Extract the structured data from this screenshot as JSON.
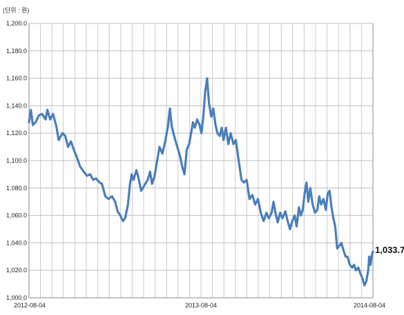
{
  "chart_data": {
    "type": "line",
    "unit_label": "(단위 : 원)",
    "ylim": [
      1000,
      1200
    ],
    "y_ticks": [
      "1,200.0",
      "1,180.0",
      "1,160.0",
      "1,140.0",
      "1,120.0",
      "1,100.0",
      "1,080.0",
      "1,060.0",
      "1,040.0",
      "1,020.0",
      "1,000.0"
    ],
    "x_ticks": [
      "2012-08-04",
      "2013-08-04",
      "2014-08-04"
    ],
    "x_range": [
      "2012-08-04",
      "2014-08-04"
    ],
    "grid": true,
    "colors": {
      "series": "#4a7ebb"
    },
    "end_label": "1,033.7",
    "series": [
      {
        "values": [
          [
            "2012-08-04",
            1128
          ],
          [
            "2012-08-08",
            1137
          ],
          [
            "2012-08-12",
            1126
          ],
          [
            "2012-08-18",
            1128
          ],
          [
            "2012-08-25",
            1133
          ],
          [
            "2012-09-01",
            1134
          ],
          [
            "2012-09-08",
            1130
          ],
          [
            "2012-09-12",
            1137
          ],
          [
            "2012-09-18",
            1130
          ],
          [
            "2012-09-24",
            1134
          ],
          [
            "2012-10-01",
            1125
          ],
          [
            "2012-10-06",
            1115
          ],
          [
            "2012-10-14",
            1120
          ],
          [
            "2012-10-20",
            1118
          ],
          [
            "2012-10-26",
            1110
          ],
          [
            "2012-11-01",
            1114
          ],
          [
            "2012-11-07",
            1108
          ],
          [
            "2012-11-14",
            1102
          ],
          [
            "2012-11-20",
            1096
          ],
          [
            "2012-11-28",
            1092
          ],
          [
            "2012-12-05",
            1089
          ],
          [
            "2012-12-12",
            1090
          ],
          [
            "2012-12-18",
            1086
          ],
          [
            "2012-12-24",
            1087
          ],
          [
            "2013-01-01",
            1084
          ],
          [
            "2013-01-06",
            1083
          ],
          [
            "2013-01-13",
            1074
          ],
          [
            "2013-01-20",
            1072
          ],
          [
            "2013-01-27",
            1074
          ],
          [
            "2013-02-03",
            1070
          ],
          [
            "2013-02-08",
            1063
          ],
          [
            "2013-02-14",
            1060
          ],
          [
            "2013-02-19",
            1056
          ],
          [
            "2013-02-24",
            1058
          ],
          [
            "2013-03-02",
            1068
          ],
          [
            "2013-03-06",
            1082
          ],
          [
            "2013-03-10",
            1090
          ],
          [
            "2013-03-14",
            1086
          ],
          [
            "2013-03-20",
            1093
          ],
          [
            "2013-03-24",
            1088
          ],
          [
            "2013-03-30",
            1078
          ],
          [
            "2013-04-06",
            1082
          ],
          [
            "2013-04-13",
            1086
          ],
          [
            "2013-04-18",
            1092
          ],
          [
            "2013-04-22",
            1083
          ],
          [
            "2013-04-27",
            1088
          ],
          [
            "2013-05-03",
            1100
          ],
          [
            "2013-05-08",
            1110
          ],
          [
            "2013-05-14",
            1105
          ],
          [
            "2013-05-20",
            1114
          ],
          [
            "2013-05-26",
            1125
          ],
          [
            "2013-05-30",
            1138
          ],
          [
            "2013-06-03",
            1125
          ],
          [
            "2013-06-08",
            1118
          ],
          [
            "2013-06-13",
            1112
          ],
          [
            "2013-06-20",
            1104
          ],
          [
            "2013-06-25",
            1096
          ],
          [
            "2013-06-30",
            1090
          ],
          [
            "2013-07-05",
            1108
          ],
          [
            "2013-07-10",
            1112
          ],
          [
            "2013-07-14",
            1120
          ],
          [
            "2013-07-18",
            1128
          ],
          [
            "2013-07-22",
            1124
          ],
          [
            "2013-07-27",
            1130
          ],
          [
            "2013-08-01",
            1126
          ],
          [
            "2013-08-05",
            1120
          ],
          [
            "2013-08-09",
            1132
          ],
          [
            "2013-08-13",
            1150
          ],
          [
            "2013-08-17",
            1160
          ],
          [
            "2013-08-21",
            1142
          ],
          [
            "2013-08-26",
            1132
          ],
          [
            "2013-08-30",
            1138
          ],
          [
            "2013-09-04",
            1126
          ],
          [
            "2013-09-08",
            1120
          ],
          [
            "2013-09-13",
            1118
          ],
          [
            "2013-09-17",
            1124
          ],
          [
            "2013-09-21",
            1115
          ],
          [
            "2013-09-26",
            1124
          ],
          [
            "2013-10-01",
            1112
          ],
          [
            "2013-10-06",
            1120
          ],
          [
            "2013-10-12",
            1112
          ],
          [
            "2013-10-17",
            1115
          ],
          [
            "2013-10-23",
            1100
          ],
          [
            "2013-10-29",
            1086
          ],
          [
            "2013-11-03",
            1084
          ],
          [
            "2013-11-09",
            1086
          ],
          [
            "2013-11-15",
            1072
          ],
          [
            "2013-11-21",
            1075
          ],
          [
            "2013-11-27",
            1068
          ],
          [
            "2013-12-03",
            1072
          ],
          [
            "2013-12-09",
            1062
          ],
          [
            "2013-12-15",
            1056
          ],
          [
            "2013-12-21",
            1062
          ],
          [
            "2013-12-26",
            1058
          ],
          [
            "2014-01-01",
            1062
          ],
          [
            "2014-01-05",
            1070
          ],
          [
            "2014-01-09",
            1062
          ],
          [
            "2014-01-14",
            1055
          ],
          [
            "2014-01-19",
            1062
          ],
          [
            "2014-01-24",
            1058
          ],
          [
            "2014-01-30",
            1063
          ],
          [
            "2014-02-04",
            1056
          ],
          [
            "2014-02-09",
            1050
          ],
          [
            "2014-02-14",
            1056
          ],
          [
            "2014-02-19",
            1060
          ],
          [
            "2014-02-23",
            1052
          ],
          [
            "2014-02-28",
            1066
          ],
          [
            "2014-03-04",
            1060
          ],
          [
            "2014-03-08",
            1064
          ],
          [
            "2014-03-12",
            1076
          ],
          [
            "2014-03-16",
            1084
          ],
          [
            "2014-03-20",
            1070
          ],
          [
            "2014-03-24",
            1080
          ],
          [
            "2014-03-29",
            1068
          ],
          [
            "2014-04-03",
            1062
          ],
          [
            "2014-04-08",
            1064
          ],
          [
            "2014-04-12",
            1074
          ],
          [
            "2014-04-16",
            1068
          ],
          [
            "2014-04-21",
            1072
          ],
          [
            "2014-04-26",
            1064
          ],
          [
            "2014-04-30",
            1076
          ],
          [
            "2014-05-04",
            1078
          ],
          [
            "2014-05-08",
            1066
          ],
          [
            "2014-05-12",
            1058
          ],
          [
            "2014-05-16",
            1052
          ],
          [
            "2014-05-20",
            1036
          ],
          [
            "2014-05-25",
            1038
          ],
          [
            "2014-05-29",
            1040
          ],
          [
            "2014-06-03",
            1034
          ],
          [
            "2014-06-07",
            1030
          ],
          [
            "2014-06-11",
            1030
          ],
          [
            "2014-06-16",
            1024
          ],
          [
            "2014-06-21",
            1022
          ],
          [
            "2014-06-25",
            1024
          ],
          [
            "2014-06-29",
            1020
          ],
          [
            "2014-07-04",
            1022
          ],
          [
            "2014-07-08",
            1018
          ],
          [
            "2014-07-13",
            1014
          ],
          [
            "2014-07-17",
            1009
          ],
          [
            "2014-07-21",
            1012
          ],
          [
            "2014-07-25",
            1020
          ],
          [
            "2014-07-27",
            1030
          ],
          [
            "2014-07-30",
            1024
          ],
          [
            "2014-08-01",
            1030
          ],
          [
            "2014-08-04",
            1033.7
          ]
        ]
      }
    ]
  }
}
